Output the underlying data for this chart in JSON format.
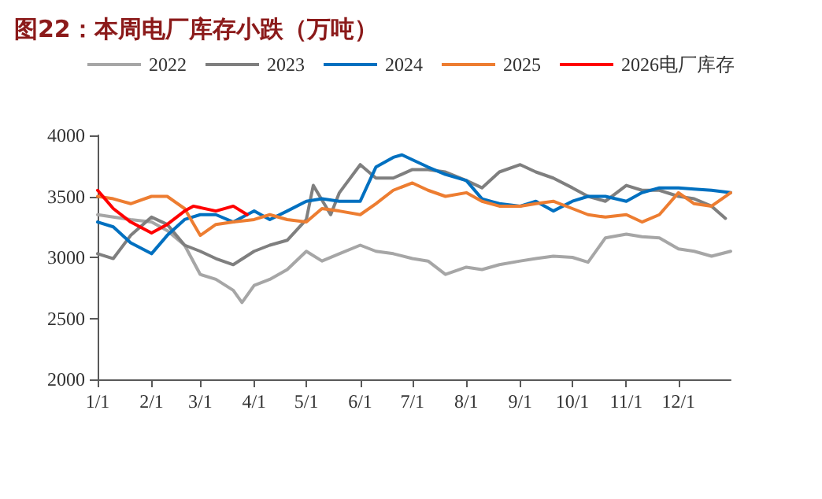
{
  "chart_data": {
    "type": "line",
    "title": "图22：本周电厂库存小跌（万吨）",
    "xlim": [
      "--01-01",
      "--12-31"
    ],
    "xticks": [
      {
        "value": "--01-01",
        "label": "1/1"
      },
      {
        "value": "--02-01",
        "label": "2/1"
      },
      {
        "value": "--03-01",
        "label": "3/1"
      },
      {
        "value": "--04-01",
        "label": "4/1"
      },
      {
        "value": "--05-01",
        "label": "5/1"
      },
      {
        "value": "--06-01",
        "label": "6/1"
      },
      {
        "value": "--07-01",
        "label": "7/1"
      },
      {
        "value": "--08-01",
        "label": "8/1"
      },
      {
        "value": "--09-01",
        "label": "9/1"
      },
      {
        "value": "--10-01",
        "label": "10/1"
      },
      {
        "value": "--11-01",
        "label": "11/1"
      },
      {
        "value": "--12-01",
        "label": "12/1"
      }
    ],
    "ylim": [
      2000,
      4000
    ],
    "yticks": [
      2000,
      2500,
      3000,
      3500,
      4000
    ],
    "series": [
      {
        "name": "2022",
        "color": "#a6a6a6",
        "x": [
          "--01-01",
          "--01-10",
          "--01-20",
          "--02-01",
          "--02-10",
          "--02-20",
          "--03-01",
          "--03-10",
          "--03-20",
          "--03-25",
          "--04-01",
          "--04-10",
          "--04-20",
          "--05-01",
          "--05-10",
          "--05-20",
          "--06-01",
          "--06-10",
          "--06-20",
          "--07-01",
          "--07-10",
          "--07-20",
          "--08-01",
          "--08-10",
          "--08-20",
          "--09-01",
          "--09-10",
          "--09-20",
          "--10-01",
          "--10-10",
          "--10-20",
          "--11-01",
          "--11-10",
          "--11-20",
          "--12-01",
          "--12-10",
          "--12-20",
          "--12-31"
        ],
        "values": [
          3350,
          3330,
          3310,
          3290,
          3220,
          3100,
          2860,
          2820,
          2730,
          2630,
          2770,
          2820,
          2900,
          3050,
          2970,
          3030,
          3100,
          3050,
          3030,
          2990,
          2970,
          2860,
          2920,
          2900,
          2940,
          2970,
          2990,
          3010,
          3000,
          2960,
          3160,
          3190,
          3170,
          3160,
          3070,
          3050,
          3010,
          3050
        ]
      },
      {
        "name": "2023",
        "color": "#7f7f7f",
        "x": [
          "--01-01",
          "--01-10",
          "--01-20",
          "--02-01",
          "--02-10",
          "--02-20",
          "--03-01",
          "--03-10",
          "--03-20",
          "--04-01",
          "--04-10",
          "--04-20",
          "--05-01",
          "--05-05",
          "--05-15",
          "--05-20",
          "--06-01",
          "--06-10",
          "--06-20",
          "--07-01",
          "--07-10",
          "--07-20",
          "--08-01",
          "--08-10",
          "--08-20",
          "--09-01",
          "--09-10",
          "--09-20",
          "--10-01",
          "--10-10",
          "--10-20",
          "--11-01",
          "--11-10",
          "--11-20",
          "--12-01",
          "--12-10",
          "--12-20",
          "--12-28"
        ],
        "values": [
          3030,
          2990,
          3180,
          3330,
          3270,
          3100,
          3050,
          2990,
          2940,
          3050,
          3100,
          3140,
          3310,
          3590,
          3350,
          3530,
          3760,
          3650,
          3650,
          3720,
          3720,
          3700,
          3630,
          3570,
          3700,
          3760,
          3700,
          3650,
          3570,
          3500,
          3460,
          3590,
          3550,
          3550,
          3500,
          3480,
          3420,
          3320
        ]
      },
      {
        "name": "2024",
        "color": "#0070c0",
        "x": [
          "--01-01",
          "--01-10",
          "--01-20",
          "--02-01",
          "--02-10",
          "--02-20",
          "--03-01",
          "--03-10",
          "--03-20",
          "--04-01",
          "--04-10",
          "--04-20",
          "--05-01",
          "--05-10",
          "--05-20",
          "--06-01",
          "--06-10",
          "--06-20",
          "--06-25",
          "--07-01",
          "--07-10",
          "--07-20",
          "--08-01",
          "--08-10",
          "--08-20",
          "--09-01",
          "--09-10",
          "--09-20",
          "--10-01",
          "--10-10",
          "--10-20",
          "--11-01",
          "--11-10",
          "--11-20",
          "--12-01",
          "--12-10",
          "--12-20",
          "--12-31"
        ],
        "values": [
          3290,
          3250,
          3120,
          3030,
          3180,
          3310,
          3350,
          3350,
          3290,
          3380,
          3310,
          3380,
          3460,
          3480,
          3460,
          3460,
          3740,
          3820,
          3840,
          3800,
          3740,
          3680,
          3630,
          3480,
          3440,
          3420,
          3460,
          3380,
          3460,
          3500,
          3500,
          3460,
          3530,
          3570,
          3570,
          3560,
          3550,
          3530
        ]
      },
      {
        "name": "2025",
        "color": "#ed7d31",
        "x": [
          "--01-01",
          "--01-10",
          "--01-20",
          "--02-01",
          "--02-10",
          "--02-20",
          "--03-01",
          "--03-10",
          "--03-20",
          "--04-01",
          "--04-10",
          "--04-20",
          "--05-01",
          "--05-10",
          "--05-20",
          "--06-01",
          "--06-10",
          "--06-20",
          "--07-01",
          "--07-10",
          "--07-20",
          "--08-01",
          "--08-10",
          "--08-20",
          "--09-01",
          "--09-10",
          "--09-20",
          "--10-01",
          "--10-10",
          "--10-20",
          "--11-01",
          "--11-10",
          "--11-20",
          "--12-01",
          "--12-10",
          "--12-20",
          "--12-31"
        ],
        "values": [
          3500,
          3480,
          3440,
          3500,
          3500,
          3400,
          3180,
          3270,
          3290,
          3310,
          3350,
          3310,
          3290,
          3400,
          3380,
          3350,
          3440,
          3550,
          3610,
          3550,
          3500,
          3530,
          3460,
          3420,
          3420,
          3440,
          3460,
          3400,
          3350,
          3330,
          3350,
          3290,
          3350,
          3530,
          3440,
          3420,
          3530
        ]
      },
      {
        "name": "2026电厂库存",
        "color": "#ff0000",
        "x": [
          "--01-01",
          "--01-10",
          "--01-20",
          "--02-01",
          "--02-10",
          "--02-20",
          "--02-25",
          "--03-10",
          "--03-20",
          "--03-28"
        ],
        "values": [
          3550,
          3400,
          3290,
          3200,
          3270,
          3380,
          3420,
          3380,
          3420,
          3350
        ]
      }
    ],
    "legend": "top",
    "grid": false,
    "marker": "none",
    "line_style": "solid"
  }
}
